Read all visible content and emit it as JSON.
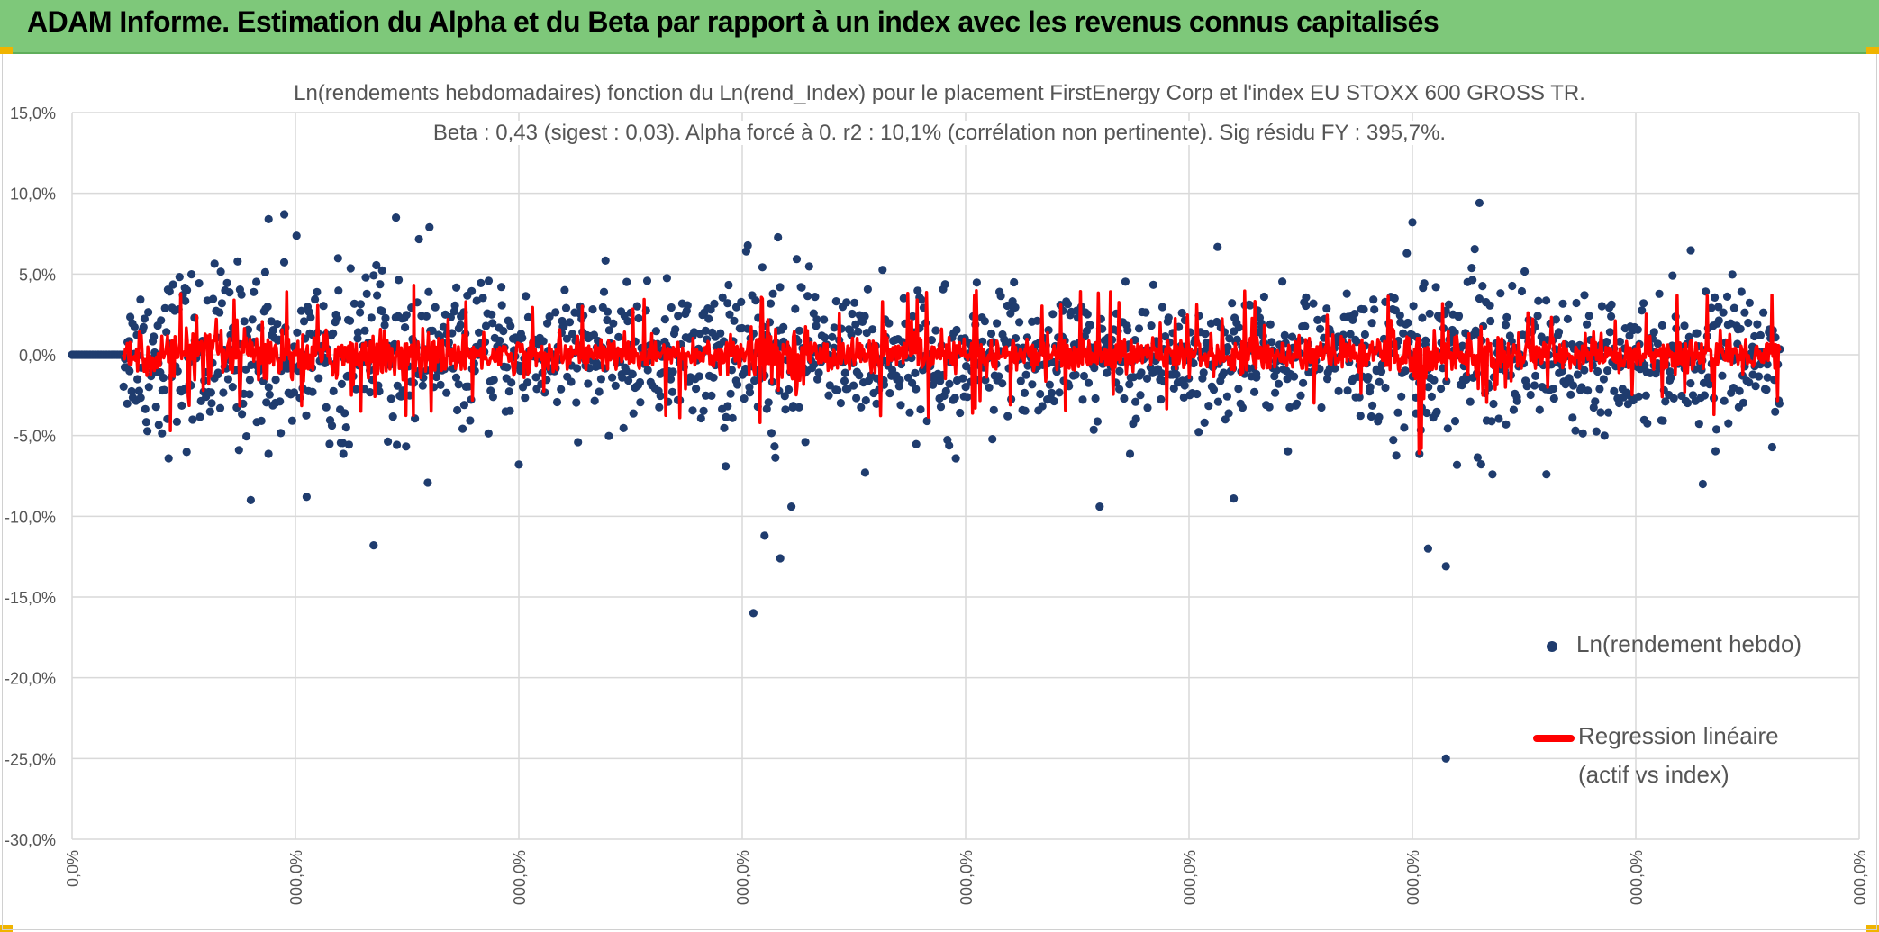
{
  "header": {
    "title": "ADAM Informe. Estimation du Alpha et du Beta par rapport à un index avec les revenus connus capitalisés"
  },
  "colors": {
    "banner": "#7ec87a",
    "scatter": "#1f3c6e",
    "regression": "#ff0000",
    "grid": "#d9d9d9",
    "text": "#555555"
  },
  "chart_data": {
    "type": "scatter",
    "title_line1": "Ln(rendements hebdomadaires) fonction du Ln(rend_Index) pour le placement FirstEnergy Corp et l'index EU STOXX 600 GROSS TR.",
    "title_line2": "Beta : 0,43 (sigest : 0,03). Alpha forcé à 0. r2 : 10,1% (corrélation non pertinente). Sig résidu FY : 395,7%.",
    "y_ticks": [
      "15,0%",
      "10,0%",
      "5,0%",
      "0,0%",
      "-5,0%",
      "-10,0%",
      "-15,0%",
      "-20,0%",
      "-25,0%",
      "-30,0%"
    ],
    "ylim": [
      -30,
      15
    ],
    "x_ticks": [
      "0,0%",
      "000,0%",
      "000,0%",
      "000,0%",
      "000,0%",
      "000,0%",
      "000,0%",
      "000,0%",
      "000,0%"
    ],
    "xlim": [
      0,
      8
    ],
    "grid": true,
    "legend_position": "bottom-right",
    "series": [
      {
        "name": "Ln(rendement hebdo)",
        "kind": "points",
        "notable_points": [
          [
            0.95,
            8.7
          ],
          [
            0.88,
            8.4
          ],
          [
            1.45,
            8.5
          ],
          [
            1.6,
            7.9
          ],
          [
            6.3,
            9.4
          ],
          [
            6.0,
            8.2
          ],
          [
            0.8,
            -9.0
          ],
          [
            1.35,
            -11.8
          ],
          [
            1.05,
            -8.8
          ],
          [
            3.05,
            -16.0
          ],
          [
            3.1,
            -11.2
          ],
          [
            3.17,
            -12.6
          ],
          [
            3.22,
            -9.4
          ],
          [
            4.6,
            -9.4
          ],
          [
            5.2,
            -8.9
          ],
          [
            6.07,
            -12.0
          ],
          [
            6.15,
            -13.1
          ],
          [
            6.15,
            -25.0
          ],
          [
            7.3,
            -8.0
          ],
          [
            2.0,
            -6.8
          ],
          [
            6.6,
            -7.4
          ],
          [
            3.55,
            -7.3
          ]
        ]
      },
      {
        "name": "Regression linéaire",
        "name_line2": "(actif vs index)",
        "kind": "line"
      }
    ]
  }
}
